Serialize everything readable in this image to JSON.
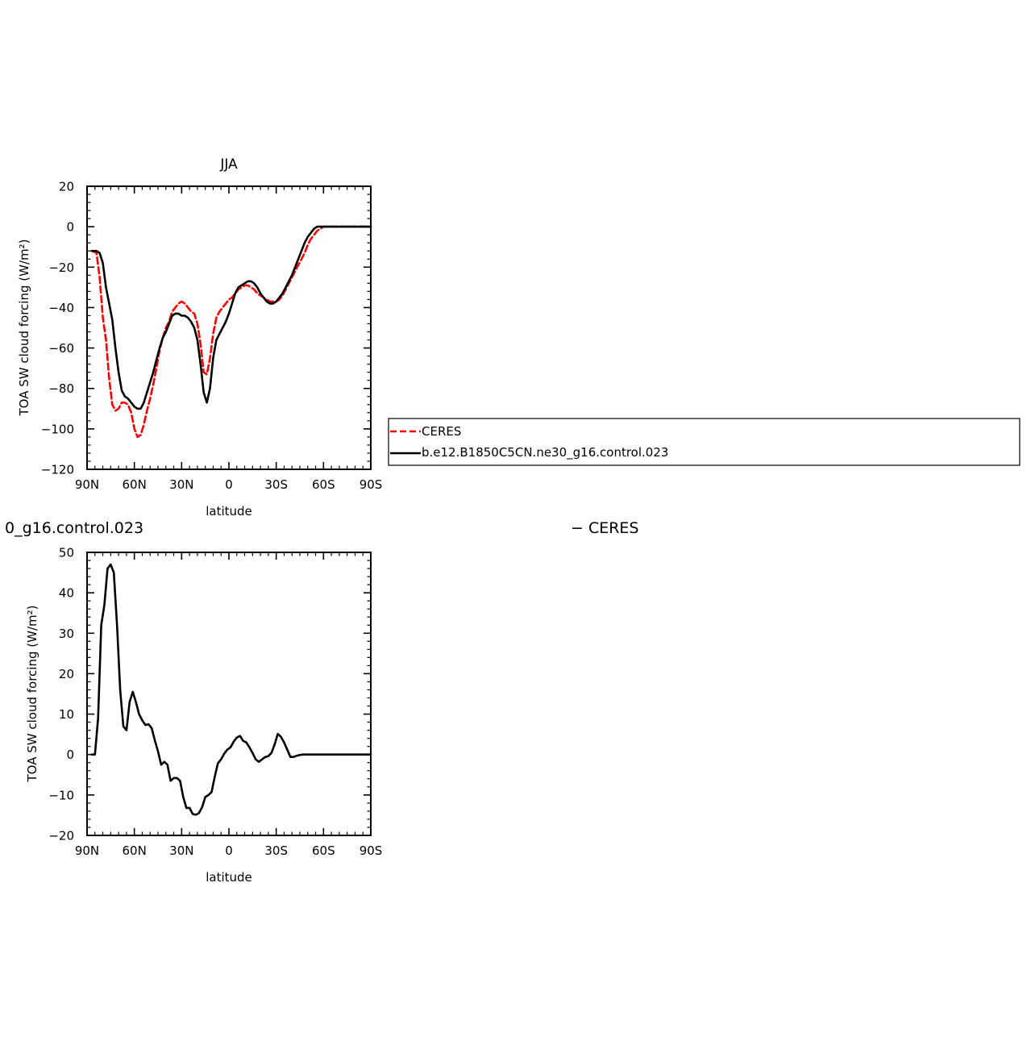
{
  "chart_data": [
    {
      "type": "line",
      "title": "JJA",
      "xlabel": "latitude",
      "ylabel": "TOA SW cloud forcing (W/m²)",
      "xlim": [
        90,
        -90
      ],
      "ylim": [
        -120,
        20
      ],
      "xticks": [
        {
          "value": 90,
          "label": "90N"
        },
        {
          "value": 60,
          "label": "60N"
        },
        {
          "value": 30,
          "label": "30N"
        },
        {
          "value": 0,
          "label": "0"
        },
        {
          "value": -30,
          "label": "30S"
        },
        {
          "value": -60,
          "label": "60S"
        },
        {
          "value": -90,
          "label": "90S"
        }
      ],
      "yticks": [
        {
          "value": 20,
          "label": "20"
        },
        {
          "value": 0,
          "label": "0"
        },
        {
          "value": -20,
          "label": "−20"
        },
        {
          "value": -40,
          "label": "−40"
        },
        {
          "value": -60,
          "label": "−60"
        },
        {
          "value": -80,
          "label": "−80"
        },
        {
          "value": -100,
          "label": "−100"
        },
        {
          "value": -120,
          "label": "−120"
        }
      ],
      "grid": false,
      "legend_placement": "right",
      "series": [
        {
          "name": "CERES",
          "color": "#ff0000",
          "style": "dashed",
          "x": [
            87,
            84,
            82,
            80,
            78,
            76,
            74,
            72,
            70,
            68,
            66,
            64,
            62,
            60,
            58,
            56,
            54,
            52,
            50,
            48,
            46,
            44,
            42,
            40,
            38,
            36,
            34,
            32,
            30,
            28,
            26,
            24,
            22,
            20,
            18,
            16,
            14,
            12,
            10,
            8,
            6,
            4,
            2,
            0,
            -2,
            -4,
            -6,
            -8,
            -10,
            -12,
            -14,
            -16,
            -18,
            -20,
            -22,
            -24,
            -26,
            -28,
            -30,
            -32,
            -34,
            -36,
            -38,
            -40,
            -42,
            -44,
            -46,
            -48,
            -50,
            -52,
            -54,
            -56,
            -58,
            -60,
            -62,
            -64,
            -66,
            -68,
            -70,
            -72,
            -74,
            -76,
            -80,
            -85,
            -90
          ],
          "y": [
            -12,
            -13,
            -25,
            -45,
            -56,
            -75,
            -88,
            -91,
            -90,
            -87,
            -87,
            -88,
            -92,
            -100,
            -104,
            -103,
            -98,
            -91,
            -85,
            -78,
            -70,
            -61,
            -55,
            -50,
            -47,
            -42,
            -40,
            -38,
            -37,
            -38,
            -40,
            -42,
            -43,
            -48,
            -58,
            -72,
            -73,
            -65,
            -53,
            -45,
            -42,
            -40,
            -38,
            -36,
            -35,
            -33,
            -31,
            -30,
            -29,
            -29,
            -30,
            -31,
            -33,
            -34,
            -35,
            -36,
            -37,
            -37,
            -37,
            -36,
            -34,
            -31,
            -28,
            -25,
            -22,
            -19,
            -16,
            -13,
            -9,
            -6,
            -4,
            -2,
            -1,
            0,
            0,
            0,
            0,
            0,
            0,
            0,
            0,
            0,
            0,
            0,
            0
          ]
        },
        {
          "name": "b.e12.B1850C5CN.ne30_g16.control.023",
          "color": "#000000",
          "style": "solid",
          "x": [
            87,
            84,
            82,
            80,
            78,
            76,
            74,
            72,
            70,
            68,
            66,
            64,
            62,
            60,
            58,
            56,
            54,
            52,
            50,
            48,
            46,
            44,
            42,
            40,
            38,
            36,
            34,
            32,
            30,
            28,
            26,
            24,
            22,
            20,
            18,
            16,
            14,
            12,
            10,
            8,
            6,
            4,
            2,
            0,
            -2,
            -4,
            -6,
            -8,
            -10,
            -12,
            -14,
            -16,
            -18,
            -20,
            -22,
            -24,
            -26,
            -28,
            -30,
            -32,
            -34,
            -36,
            -38,
            -40,
            -42,
            -44,
            -46,
            -48,
            -50,
            -52,
            -54,
            -56,
            -58,
            -60,
            -62,
            -64,
            -66,
            -68,
            -70,
            -72,
            -74,
            -76,
            -80,
            -85,
            -90
          ],
          "y": [
            -12,
            -12,
            -13,
            -18,
            -30,
            -38,
            -46,
            -60,
            -72,
            -81,
            -84,
            -85,
            -87,
            -89,
            -90,
            -90,
            -87,
            -82,
            -77,
            -72,
            -66,
            -60,
            -55,
            -52,
            -48,
            -44,
            -43,
            -43,
            -44,
            -44,
            -45,
            -47,
            -50,
            -56,
            -68,
            -82,
            -87,
            -80,
            -65,
            -56,
            -53,
            -50,
            -47,
            -43,
            -38,
            -33,
            -30,
            -29,
            -28,
            -27,
            -27,
            -28,
            -30,
            -33,
            -35,
            -37,
            -38,
            -38,
            -37,
            -35,
            -33,
            -30,
            -27,
            -24,
            -20,
            -16,
            -12,
            -8,
            -5,
            -3,
            -1,
            0,
            0,
            0,
            0,
            0,
            0,
            0,
            0,
            0,
            0,
            0,
            0,
            0,
            0
          ]
        }
      ]
    },
    {
      "type": "line",
      "title": "0_g16.control.023",
      "title_right": "− CERES",
      "xlabel": "latitude",
      "ylabel": "TOA SW cloud forcing (W/m²)",
      "xlim": [
        90,
        -90
      ],
      "ylim": [
        -20,
        50
      ],
      "xticks": [
        {
          "value": 90,
          "label": "90N"
        },
        {
          "value": 60,
          "label": "60N"
        },
        {
          "value": 30,
          "label": "30N"
        },
        {
          "value": 0,
          "label": "0"
        },
        {
          "value": -30,
          "label": "30S"
        },
        {
          "value": -60,
          "label": "60S"
        },
        {
          "value": -90,
          "label": "90S"
        }
      ],
      "yticks": [
        {
          "value": 50,
          "label": "50"
        },
        {
          "value": 40,
          "label": "40"
        },
        {
          "value": 30,
          "label": "30"
        },
        {
          "value": 20,
          "label": "20"
        },
        {
          "value": 10,
          "label": "10"
        },
        {
          "value": 0,
          "label": "0"
        },
        {
          "value": -10,
          "label": "−10"
        },
        {
          "value": -20,
          "label": "−20"
        }
      ],
      "grid": false,
      "series": [
        {
          "color": "#000000",
          "style": "solid",
          "x": [
            87,
            85,
            83,
            81,
            79,
            77,
            75,
            73,
            71,
            69,
            67,
            65,
            63,
            61,
            59,
            57,
            55,
            53,
            51,
            49,
            47,
            45,
            43,
            41,
            39,
            37,
            35,
            33,
            31,
            29,
            27,
            25,
            23,
            21,
            19,
            17,
            15,
            13,
            11,
            9,
            7,
            5,
            3,
            1,
            -1,
            -3,
            -5,
            -7,
            -9,
            -11,
            -13,
            -15,
            -17,
            -19,
            -21,
            -23,
            -25,
            -27,
            -29,
            -31,
            -33,
            -35,
            -37,
            -39,
            -41,
            -43,
            -45,
            -47,
            -49,
            -51,
            -53,
            -55,
            -57,
            -59,
            -61,
            -63,
            -65,
            -67,
            -69,
            -71,
            -73,
            -75,
            -77,
            -80,
            -85,
            -90
          ],
          "y": [
            0,
            0,
            9,
            32,
            37,
            46,
            47,
            45,
            32,
            16,
            7,
            6,
            13,
            15.5,
            13,
            10,
            8.5,
            7.3,
            7.5,
            6.5,
            3.5,
            0.8,
            -2.5,
            -1.8,
            -2.5,
            -6.5,
            -5.8,
            -5.8,
            -6.5,
            -10.5,
            -13.2,
            -13.2,
            -14.7,
            -14.9,
            -14.5,
            -13,
            -10.5,
            -10,
            -9.3,
            -5.5,
            -2.2,
            -1.2,
            0.2,
            1.2,
            1.8,
            3.2,
            4.2,
            4.6,
            3.4,
            3,
            1.8,
            0.4,
            -1.2,
            -1.8,
            -1.2,
            -0.6,
            -0.4,
            0.4,
            2.5,
            5.1,
            4.4,
            3,
            1.2,
            -0.6,
            -0.6,
            -0.3,
            -0.1,
            0,
            0,
            0,
            0,
            0,
            0,
            0,
            0,
            0,
            0,
            0,
            0,
            0,
            0,
            0,
            0,
            0,
            0,
            0
          ]
        }
      ]
    }
  ]
}
